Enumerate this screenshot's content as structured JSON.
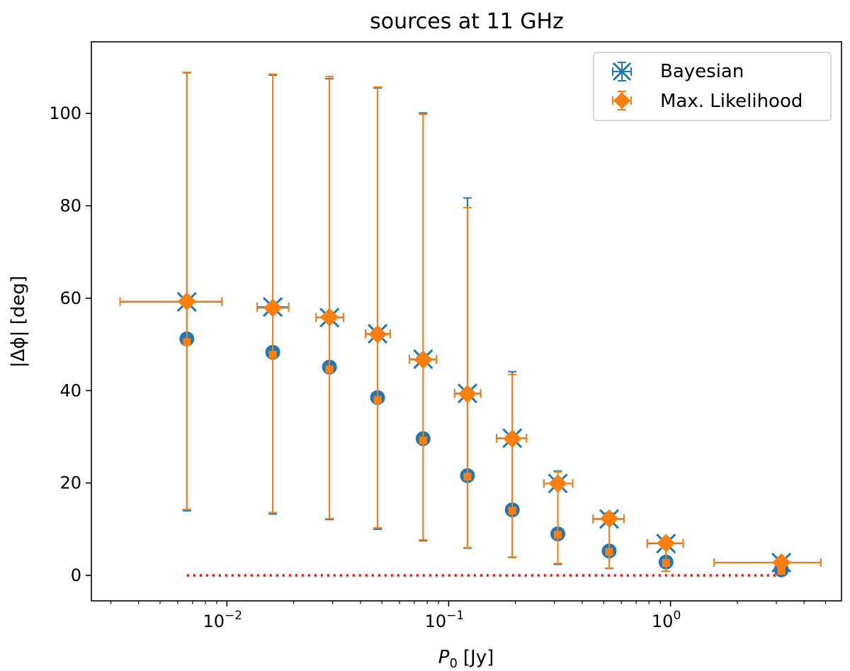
{
  "chart_data": {
    "type": "scatter",
    "title": "sources at 11 GHz",
    "xlabel_symbol": "P",
    "xlabel_subscript": "0",
    "xlabel_unit": "[Jy]",
    "ylabel": "|Δϕ| [deg]",
    "xscale": "log",
    "xlim": [
      0.00245,
      5.9
    ],
    "ylim": [
      -5.5,
      115.5
    ],
    "yticks": [
      {
        "value": 0,
        "label": "0"
      },
      {
        "value": 20,
        "label": "20"
      },
      {
        "value": 40,
        "label": "40"
      },
      {
        "value": 60,
        "label": "60"
      },
      {
        "value": 80,
        "label": "80"
      },
      {
        "value": 100,
        "label": "100"
      }
    ],
    "xticks": [
      {
        "value": 0.01,
        "base": "10",
        "exp": "−2"
      },
      {
        "value": 0.1,
        "base": "10",
        "exp": "−1"
      },
      {
        "value": 1,
        "base": "10",
        "exp": "0"
      }
    ],
    "legend": {
      "placement": "top-right",
      "entries": [
        {
          "label": "Bayesian",
          "series": "bayesian"
        },
        {
          "label": "Max. Likelihood",
          "series": "ml"
        }
      ]
    },
    "colors": {
      "bayesian": "#1f77b4",
      "ml": "#ff7f0e",
      "reference": "#ff0000"
    },
    "bins": [
      {
        "x": 0.0066,
        "xlo": 0.0033,
        "xhi": 0.0095
      },
      {
        "x": 0.0161,
        "xlo": 0.0137,
        "xhi": 0.019
      },
      {
        "x": 0.029,
        "xlo": 0.0252,
        "xhi": 0.0336
      },
      {
        "x": 0.0478,
        "xlo": 0.0422,
        "xhi": 0.0545
      },
      {
        "x": 0.0767,
        "xlo": 0.0665,
        "xhi": 0.088
      },
      {
        "x": 0.1215,
        "xlo": 0.1063,
        "xhi": 0.1395
      },
      {
        "x": 0.1935,
        "xlo": 0.1645,
        "xhi": 0.2245
      },
      {
        "x": 0.3105,
        "xlo": 0.2685,
        "xhi": 0.362
      },
      {
        "x": 0.529,
        "xlo": 0.4475,
        "xhi": 0.6175
      },
      {
        "x": 0.9545,
        "xlo": 0.7855,
        "xhi": 1.14
      },
      {
        "x": 3.16,
        "xlo": 1.57,
        "xhi": 4.76
      }
    ],
    "series": [
      {
        "name": "Bayesian",
        "key": "bayesian",
        "marker": "x",
        "mean": [
          59.2,
          58.1,
          55.8,
          52.3,
          46.8,
          39.4,
          29.7,
          19.9,
          12.2,
          6.9,
          2.8
        ],
        "lower": [
          14.0,
          13.3,
          12.1,
          10.0,
          7.5,
          5.9,
          3.9,
          2.4,
          1.5,
          0.9,
          0.3
        ],
        "upper": [
          108.8,
          108.3,
          107.5,
          105.5,
          100.1,
          81.7,
          44.1,
          22.6,
          13.5,
          7.6,
          3.1
        ],
        "median": [
          51.2,
          48.3,
          45.1,
          38.5,
          29.6,
          21.6,
          14.2,
          9.0,
          5.3,
          2.9,
          1.2
        ]
      },
      {
        "name": "Max. Likelihood",
        "key": "ml",
        "marker": "diamond",
        "mean": [
          59.3,
          57.9,
          55.9,
          52.2,
          46.7,
          39.3,
          29.6,
          19.9,
          12.3,
          7.0,
          2.8
        ],
        "lower": [
          14.3,
          13.6,
          12.3,
          10.3,
          7.7,
          6.0,
          4.0,
          2.6,
          1.6,
          0.9,
          0.3
        ],
        "upper": [
          108.9,
          108.5,
          108.0,
          105.7,
          99.8,
          79.6,
          43.5,
          22.4,
          13.4,
          7.6,
          3.1
        ],
        "median": [
          50.5,
          47.8,
          44.6,
          38.0,
          29.2,
          21.4,
          14.0,
          8.8,
          5.1,
          2.7,
          1.0
        ]
      }
    ],
    "reference_line": {
      "y": 0,
      "x_from": 0.0066,
      "x_to": 3.16,
      "style": "dotted"
    }
  }
}
